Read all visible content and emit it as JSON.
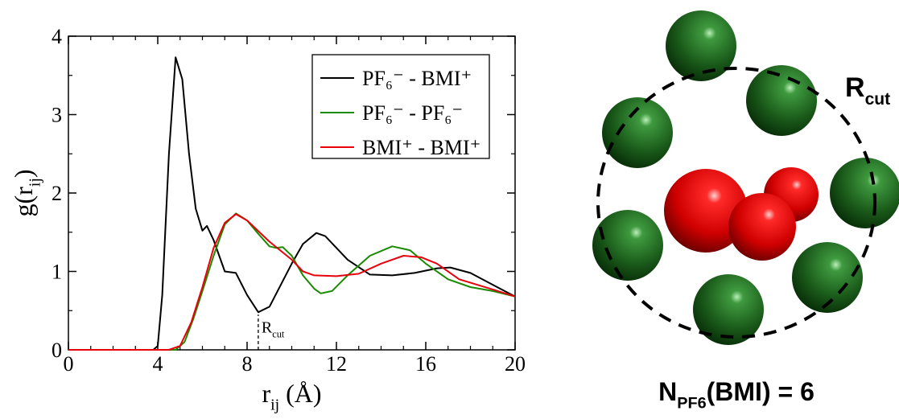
{
  "chart_data": {
    "type": "line",
    "xlabel": {
      "text": "r",
      "sub": "ij",
      "tail": " (Å)"
    },
    "ylabel": {
      "text": "g(r",
      "sub": "ij",
      "tail": ")"
    },
    "xlim": [
      0,
      20
    ],
    "ylim": [
      0,
      4
    ],
    "xticks": [
      0,
      4,
      8,
      12,
      16,
      20
    ],
    "yticks": [
      0,
      1,
      2,
      3,
      4
    ],
    "legend": "top-right",
    "series": [
      {
        "name": "PF₆⁻ - BMI⁺",
        "color": "#000000",
        "x": [
          0,
          3.8,
          4.0,
          4.2,
          4.5,
          4.8,
          5.1,
          5.4,
          5.7,
          6.0,
          6.2,
          6.5,
          7.0,
          7.5,
          8.0,
          8.5,
          9.0,
          10.0,
          10.5,
          11.1,
          11.5,
          12.5,
          13.5,
          14.5,
          15.5,
          16.5,
          17.1,
          18.0,
          19.0,
          20.0
        ],
        "values": [
          0,
          0,
          0.05,
          0.7,
          2.5,
          3.73,
          3.45,
          2.5,
          1.8,
          1.52,
          1.58,
          1.4,
          1.0,
          0.98,
          0.7,
          0.48,
          0.55,
          1.1,
          1.35,
          1.49,
          1.45,
          1.15,
          0.96,
          0.95,
          0.98,
          1.04,
          1.05,
          0.98,
          0.83,
          0.68
        ]
      },
      {
        "name": "PF₆⁻ - PF₆⁻",
        "color": "#1a8a00",
        "x": [
          0,
          4.8,
          5.2,
          5.6,
          6.0,
          6.5,
          7.0,
          7.5,
          8.0,
          8.5,
          9.0,
          9.3,
          9.6,
          10.0,
          10.5,
          11.0,
          11.3,
          11.8,
          12.5,
          13.5,
          14.5,
          15.3,
          16.0,
          17.0,
          18.0,
          19.0,
          20.0
        ],
        "values": [
          0,
          0,
          0.1,
          0.4,
          0.75,
          1.2,
          1.6,
          1.74,
          1.65,
          1.48,
          1.32,
          1.3,
          1.31,
          1.2,
          0.95,
          0.78,
          0.72,
          0.75,
          0.95,
          1.2,
          1.32,
          1.27,
          1.1,
          0.9,
          0.8,
          0.75,
          0.68
        ]
      },
      {
        "name": "BMI⁺ - BMI⁺",
        "color": "#e8000b",
        "x": [
          0,
          4.5,
          5.0,
          5.5,
          6.0,
          6.5,
          7.0,
          7.5,
          8.0,
          9.0,
          10.0,
          10.5,
          11.0,
          12.0,
          13.0,
          14.0,
          15.0,
          15.8,
          16.5,
          17.5,
          19.0,
          20.0
        ],
        "values": [
          0,
          0,
          0.05,
          0.35,
          0.8,
          1.3,
          1.62,
          1.73,
          1.65,
          1.38,
          1.15,
          1.0,
          0.95,
          0.94,
          0.97,
          1.1,
          1.2,
          1.18,
          1.1,
          0.9,
          0.77,
          0.68
        ]
      }
    ],
    "annotation": {
      "text": "R",
      "sub": "cut",
      "x": 8.5
    }
  },
  "diagram": {
    "label": {
      "text": "R",
      "sub": "cut"
    },
    "caption": {
      "text": "N",
      "sub": "PF6",
      "tail": "(BMI) = 6"
    }
  }
}
